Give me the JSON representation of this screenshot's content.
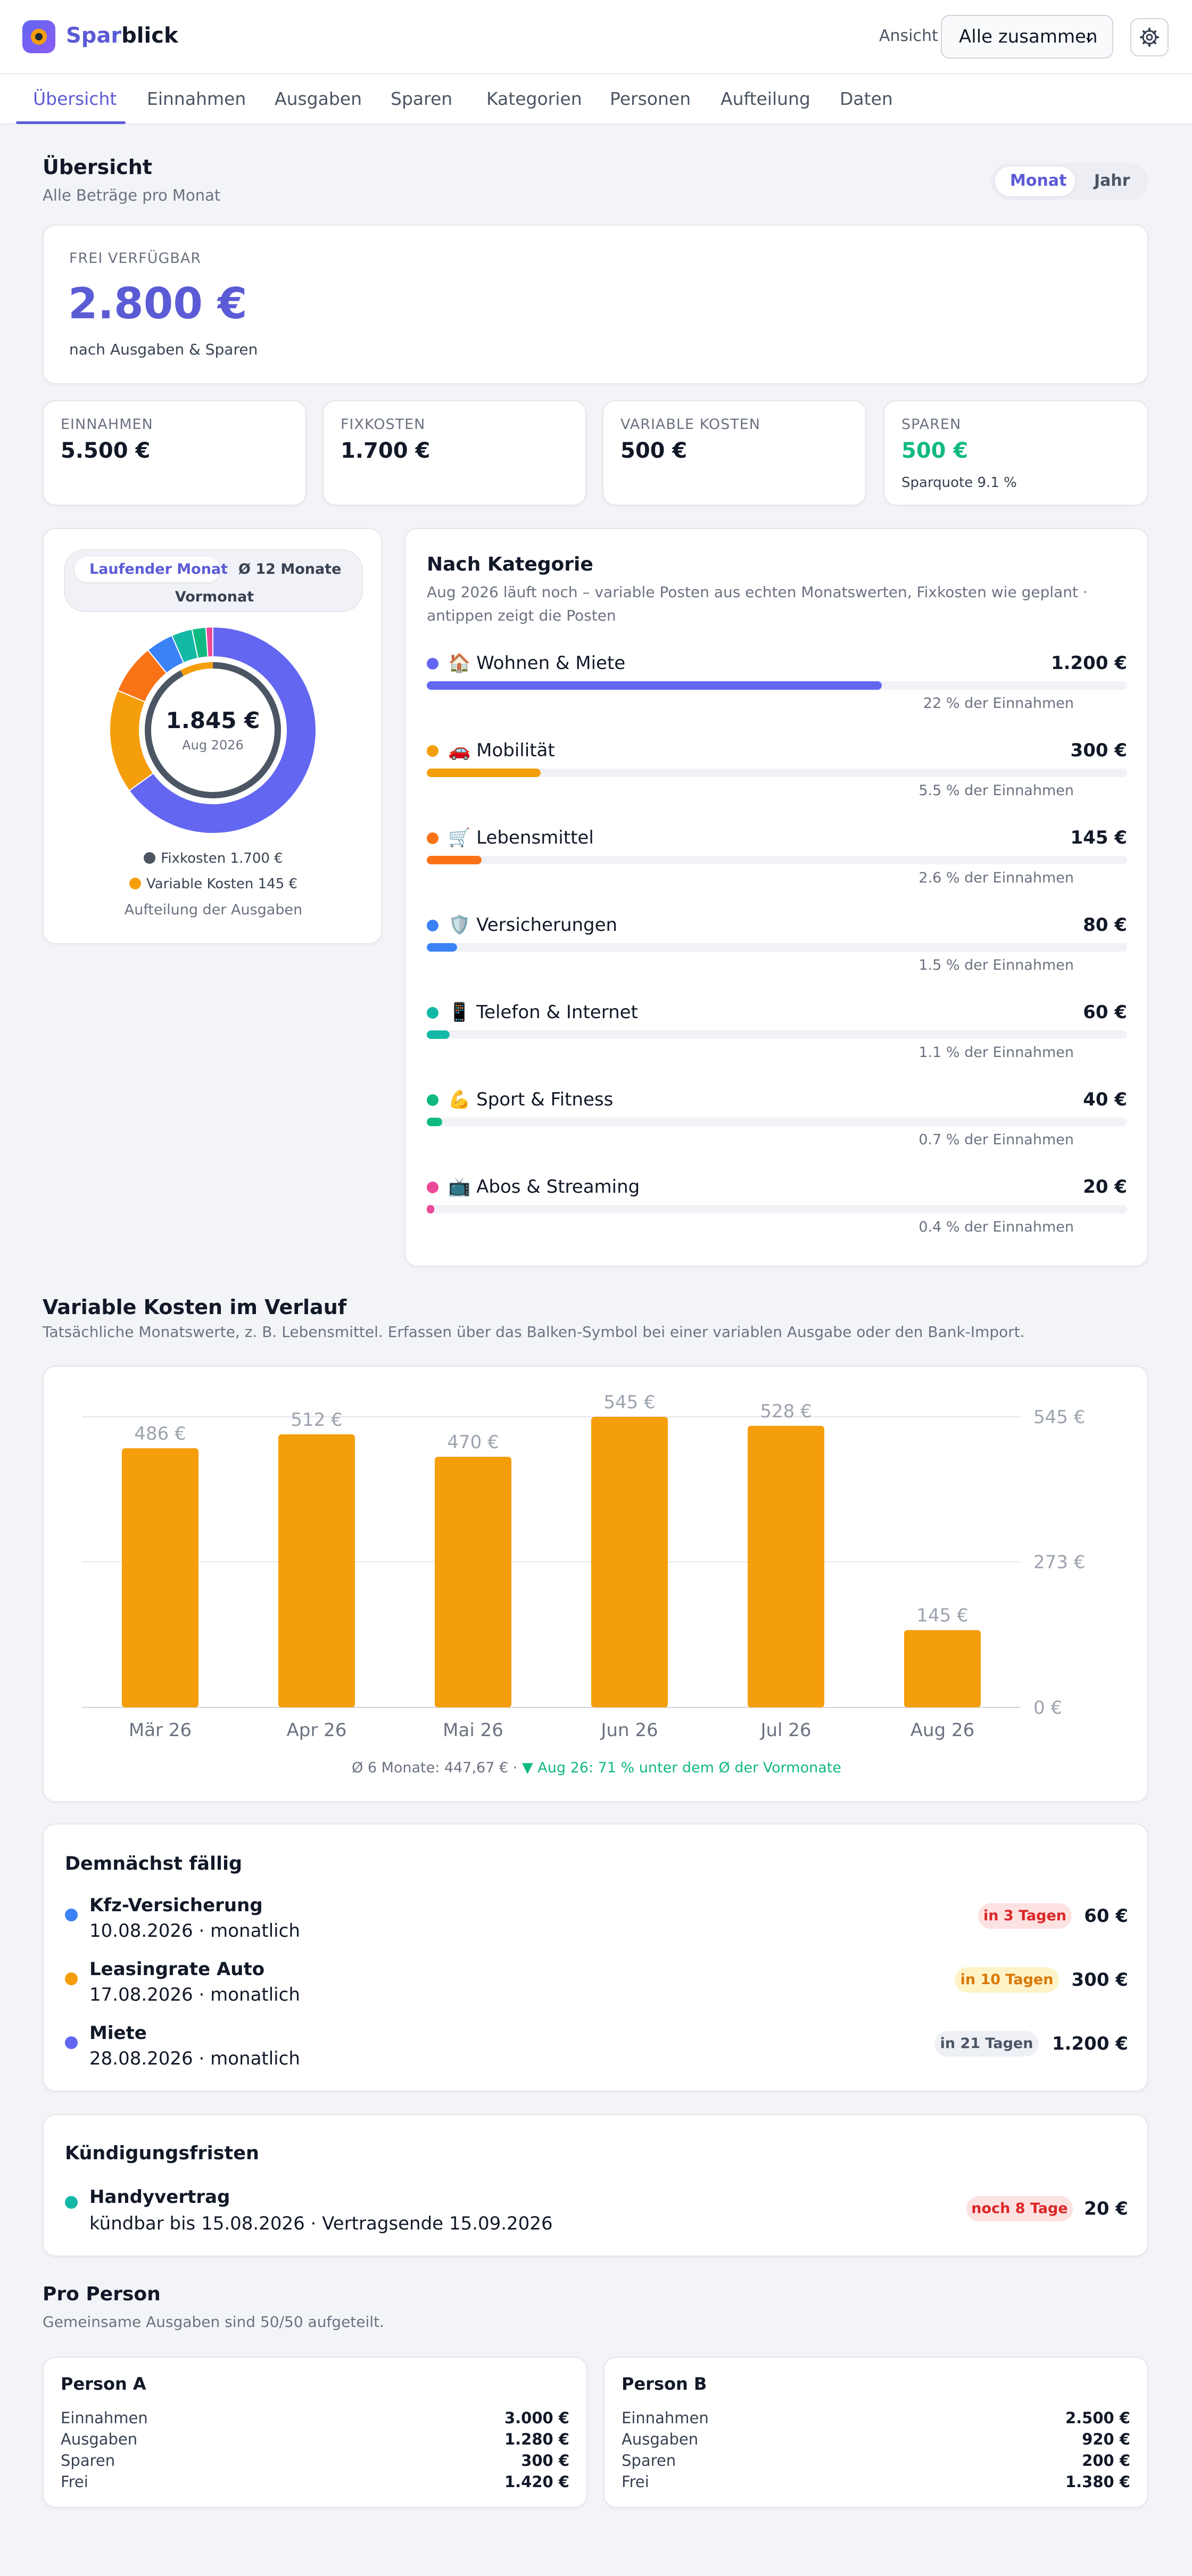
{
  "app": {
    "name_part1": "Spar",
    "name_part2": "blick"
  },
  "header": {
    "view_label": "Ansicht",
    "view_value": "Alle zusammen",
    "colors": {
      "brand": "#5b5bd6"
    }
  },
  "tabs": [
    "Übersicht",
    "Einnahmen",
    "Ausgaben",
    "Sparen",
    "Kategorien",
    "Personen",
    "Aufteilung",
    "Daten"
  ],
  "active_tab": "Übersicht",
  "overview": {
    "title": "Übersicht",
    "subtitle": "Alle Beträge pro Monat",
    "toggle": [
      "Monat",
      "Jahr"
    ],
    "toggle_active": "Monat"
  },
  "free": {
    "label": "FREI VERFÜGBAR",
    "value": "2.800 €",
    "note": "nach Ausgaben & Sparen"
  },
  "kpis": [
    {
      "label": "EINNAHMEN",
      "value": "5.500 €",
      "note": ""
    },
    {
      "label": "FIXKOSTEN",
      "value": "1.700 €",
      "note": ""
    },
    {
      "label": "VARIABLE KOSTEN",
      "value": "500 €",
      "note": ""
    },
    {
      "label": "SPAREN",
      "value": "500 €",
      "note": "Sparquote 9.1 %"
    }
  ],
  "donut": {
    "toggle": [
      "Laufender Monat",
      "Ø 12 Monate",
      "Vormonat"
    ],
    "toggle_active": "Laufender Monat",
    "center_value": "1.845 €",
    "center_label": "Aug 2026",
    "inner_ring": [
      {
        "name": "Fixkosten",
        "value": 1700,
        "color": "#4b5563"
      },
      {
        "name": "Variable Kosten",
        "value": 145,
        "color": "#f59e0b"
      }
    ],
    "legend": [
      "Fixkosten 1.700 €",
      "Variable Kosten 145 €"
    ],
    "footer": "Aufteilung der Ausgaben"
  },
  "categories": {
    "title": "Nach Kategorie",
    "subtitle_line1": "Aug 2026 läuft noch – variable Posten aus echten Monatswerten, Fixkosten wie geplant ·",
    "subtitle_line2": "antippen zeigt die Posten",
    "items": [
      {
        "icon": "🏠",
        "name": "Wohnen & Miete",
        "amount": "1.200 €",
        "value": 1200,
        "pct": "22 % der Einnahmen",
        "color": "#6366f1"
      },
      {
        "icon": "🚗",
        "name": "Mobilität",
        "amount": "300 €",
        "value": 300,
        "pct": "5.5 % der Einnahmen",
        "color": "#f59e0b"
      },
      {
        "icon": "🛒",
        "name": "Lebensmittel",
        "amount": "145 €",
        "value": 145,
        "pct": "2.6 % der Einnahmen",
        "color": "#f97316"
      },
      {
        "icon": "🛡️",
        "name": "Versicherungen",
        "amount": "80 €",
        "value": 80,
        "pct": "1.5 % der Einnahmen",
        "color": "#3b82f6"
      },
      {
        "icon": "📱",
        "name": "Telefon & Internet",
        "amount": "60 €",
        "value": 60,
        "pct": "1.1 % der Einnahmen",
        "color": "#14b8a6"
      },
      {
        "icon": "💪",
        "name": "Sport & Fitness",
        "amount": "40 €",
        "value": 40,
        "pct": "0.7 % der Einnahmen",
        "color": "#10b981"
      },
      {
        "icon": "📺",
        "name": "Abos & Streaming",
        "amount": "20 €",
        "value": 20,
        "pct": "0.4 % der Einnahmen",
        "color": "#ec4899"
      }
    ]
  },
  "variable": {
    "title": "Variable Kosten im Verlauf",
    "subtitle": "Tatsächliche Monatswerte, z. B. Lebensmittel. Erfassen über das Balken-Symbol bei einer variablen Ausgabe oder den Bank-Import.",
    "footer_prefix": "Ø 6 Monate: 447,67 € · ",
    "footer_trend": "▼ Aug 26: 71 % unter dem Ø der Vormonate"
  },
  "chart_data": {
    "type": "bar",
    "categories": [
      "Mär 26",
      "Apr 26",
      "Mai 26",
      "Jun 26",
      "Jul 26",
      "Aug 26"
    ],
    "values": [
      486,
      512,
      470,
      545,
      528,
      145
    ],
    "value_labels": [
      "486 €",
      "512 €",
      "470 €",
      "545 €",
      "528 €",
      "145 €"
    ],
    "ticks": [
      0,
      273,
      545
    ],
    "tick_labels": [
      "0 €",
      "273 €",
      "545 €"
    ],
    "ylim": [
      0,
      545
    ],
    "color": "#f59e0b",
    "grid": true
  },
  "due": {
    "title": "Demnächst fällig",
    "items": [
      {
        "name": "Kfz-Versicherung",
        "detail": "10.08.2026 · monatlich",
        "badge": "in 3 Tagen",
        "amount": "60 €",
        "color": "#3b82f6",
        "badge_bg": "#fde2e2",
        "badge_fg": "#dc2626"
      },
      {
        "name": "Leasingrate Auto",
        "detail": "17.08.2026 · monatlich",
        "badge": "in 10 Tagen",
        "amount": "300 €",
        "color": "#f59e0b",
        "badge_bg": "#fef3c7",
        "badge_fg": "#d97706"
      },
      {
        "name": "Miete",
        "detail": "28.08.2026 · monatlich",
        "badge": "in 21 Tagen",
        "amount": "1.200 €",
        "color": "#6366f1",
        "badge_bg": "#eef0f6",
        "badge_fg": "#4b5563"
      }
    ]
  },
  "cancel": {
    "title": "Kündigungsfristen",
    "items": [
      {
        "name": "Handyvertrag",
        "detail": "kündbar bis 15.08.2026 · Vertragsende 15.09.2026",
        "badge": "noch 8 Tage",
        "amount": "20 €",
        "color": "#14b8a6"
      }
    ]
  },
  "persons": {
    "title": "Pro Person",
    "subtitle": "Gemeinsame Ausgaben sind 50/50 aufgeteilt.",
    "items": [
      {
        "name": "Person A",
        "rows": [
          {
            "k": "Einnahmen",
            "v": "3.000 €"
          },
          {
            "k": "Ausgaben",
            "v": "1.280 €"
          },
          {
            "k": "Sparen",
            "v": "300 €"
          },
          {
            "k": "Frei",
            "v": "1.420 €"
          }
        ]
      },
      {
        "name": "Person B",
        "rows": [
          {
            "k": "Einnahmen",
            "v": "2.500 €"
          },
          {
            "k": "Ausgaben",
            "v": "920 €"
          },
          {
            "k": "Sparen",
            "v": "200 €"
          },
          {
            "k": "Frei",
            "v": "1.380 €"
          }
        ]
      }
    ]
  }
}
